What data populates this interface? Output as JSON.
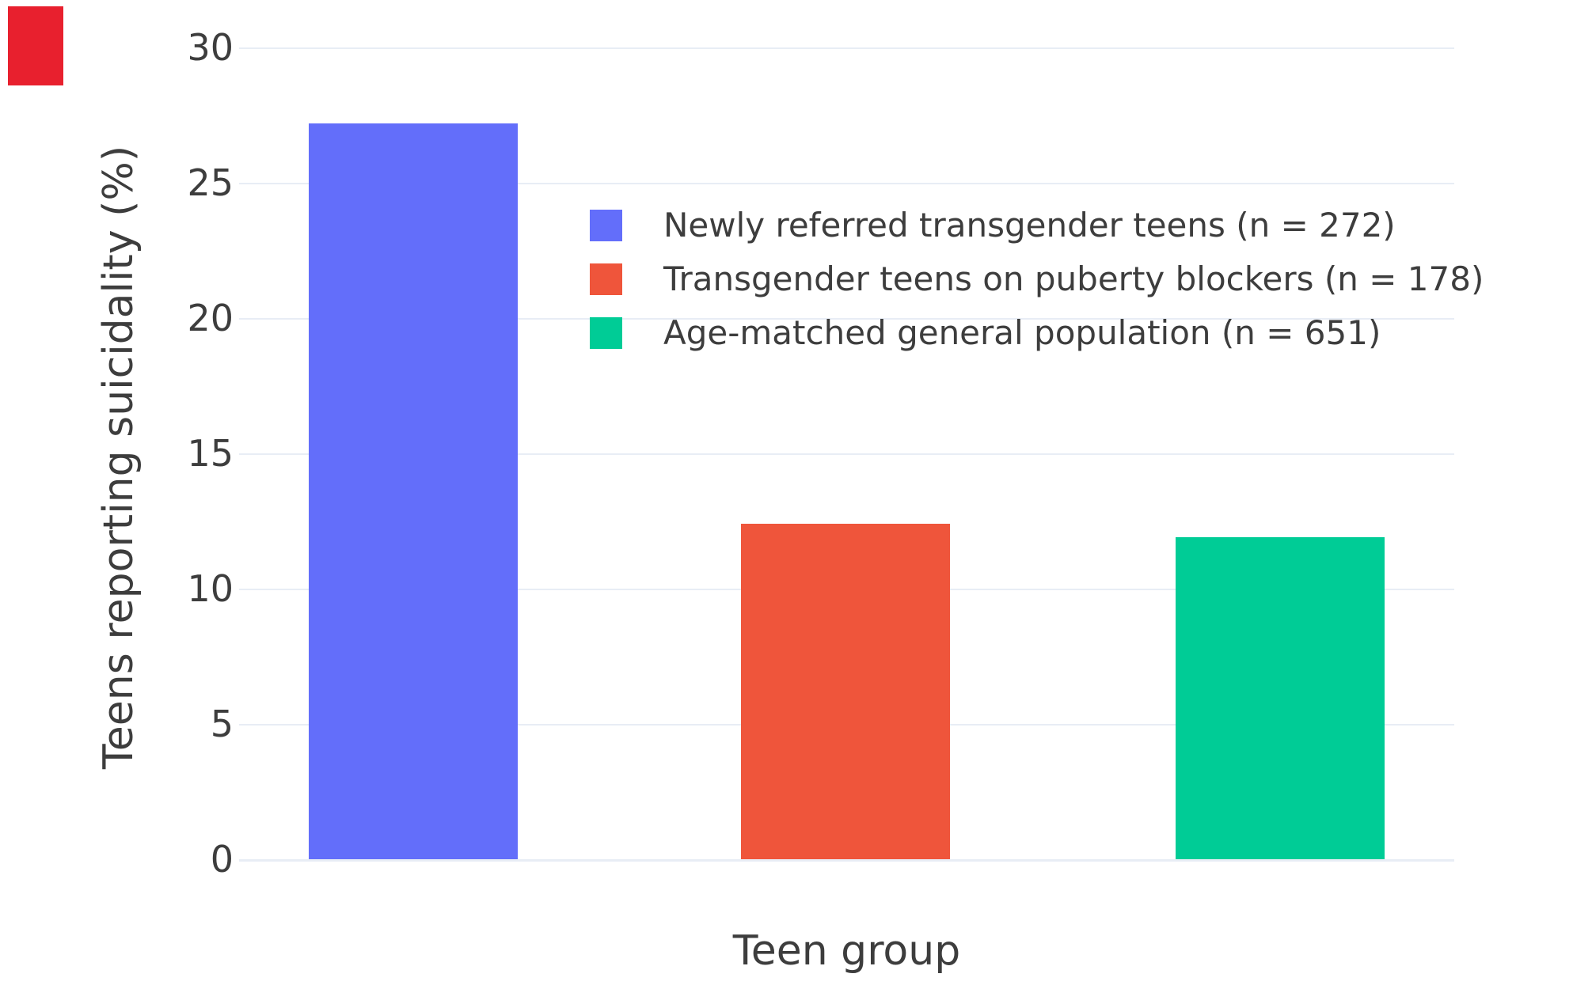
{
  "chart_data": {
    "type": "bar",
    "categories": [
      "Newly referred transgender teens (n = 272)",
      "Transgender teens on puberty blockers (n = 178)",
      "Age-matched general population (n = 651)"
    ],
    "values": [
      27.2,
      12.4,
      11.9
    ],
    "colors": [
      "#636EFA",
      "#EF553B",
      "#00CC96"
    ],
    "title": "",
    "xlabel": "Teen group",
    "ylabel": "Teens reporting suicidality (%)",
    "ylim": [
      0,
      30
    ],
    "yticks": [
      0,
      5,
      10,
      15,
      20,
      25,
      30
    ],
    "grid": true,
    "gridcolor": "#E8EDF5",
    "legend_position": "inside-top-right",
    "legend_entries": [
      "Newly referred transgender teens (n = 272)",
      "Transgender teens on puberty blockers (n = 178)",
      "Age-matched general population (n = 651)"
    ]
  },
  "overlay_marker": {
    "color": "#E8202E"
  },
  "text_color": "#3d3d3d"
}
